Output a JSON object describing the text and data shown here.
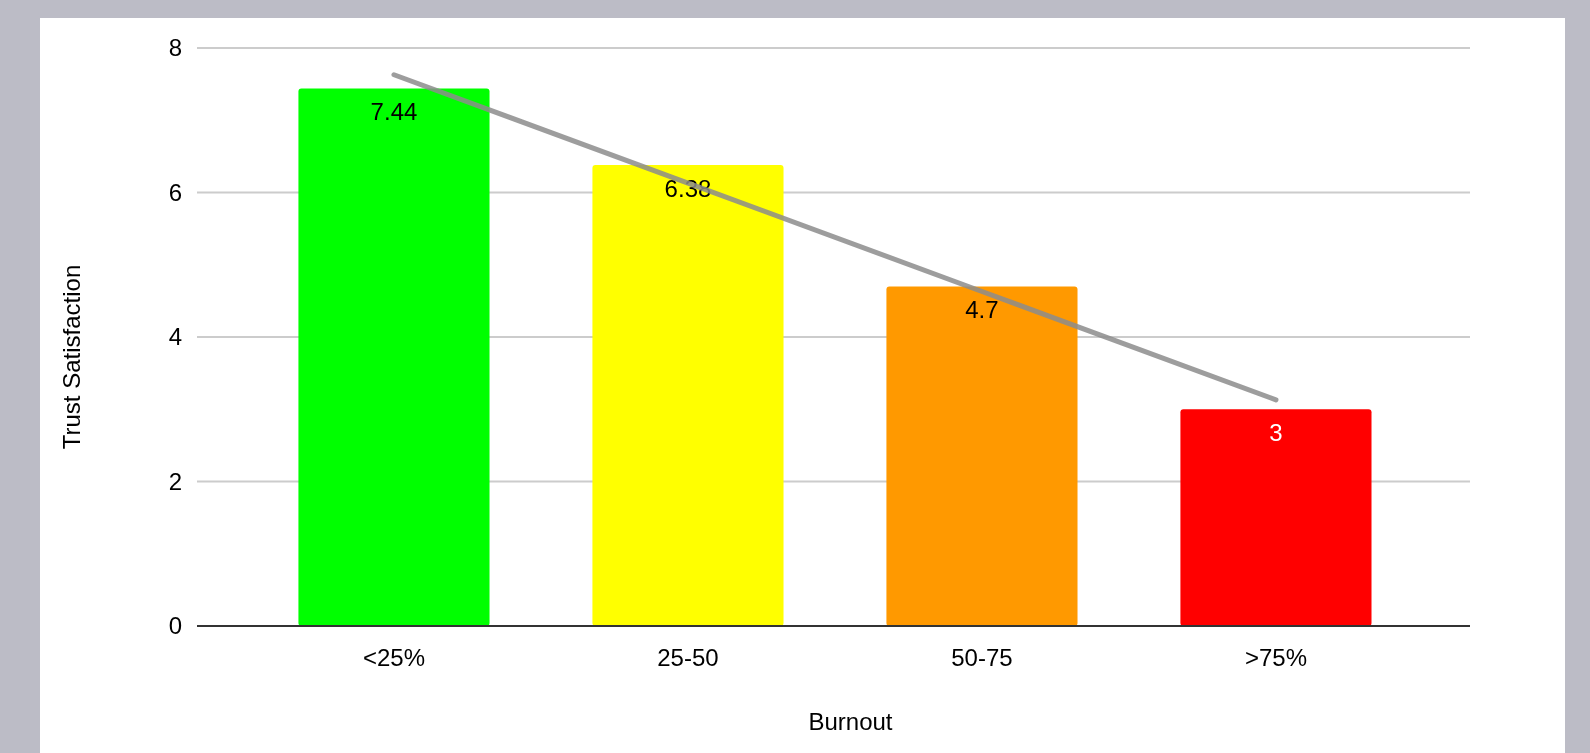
{
  "chart_data": {
    "type": "bar",
    "xlabel": "Burnout",
    "ylabel": "Trust Satisfaction",
    "categories": [
      "<25%",
      "25-50",
      "50-75",
      ">75%"
    ],
    "series": [
      {
        "colors": [
          "#00ff00",
          "#ffff00",
          "#ff9900",
          "#ff0000"
        ],
        "values": [
          7.44,
          6.38,
          4.7,
          3
        ],
        "value_labels": [
          "7.44",
          "6.38",
          "4.7",
          "3"
        ]
      },
      {
        "type": "line",
        "color": "#8c8c8c",
        "values": [
          7.63,
          6.13,
          4.63,
          3.13
        ]
      }
    ],
    "ylim": [
      0,
      8
    ],
    "yticks": [
      0,
      2,
      4,
      6,
      8
    ],
    "grid": "y"
  }
}
